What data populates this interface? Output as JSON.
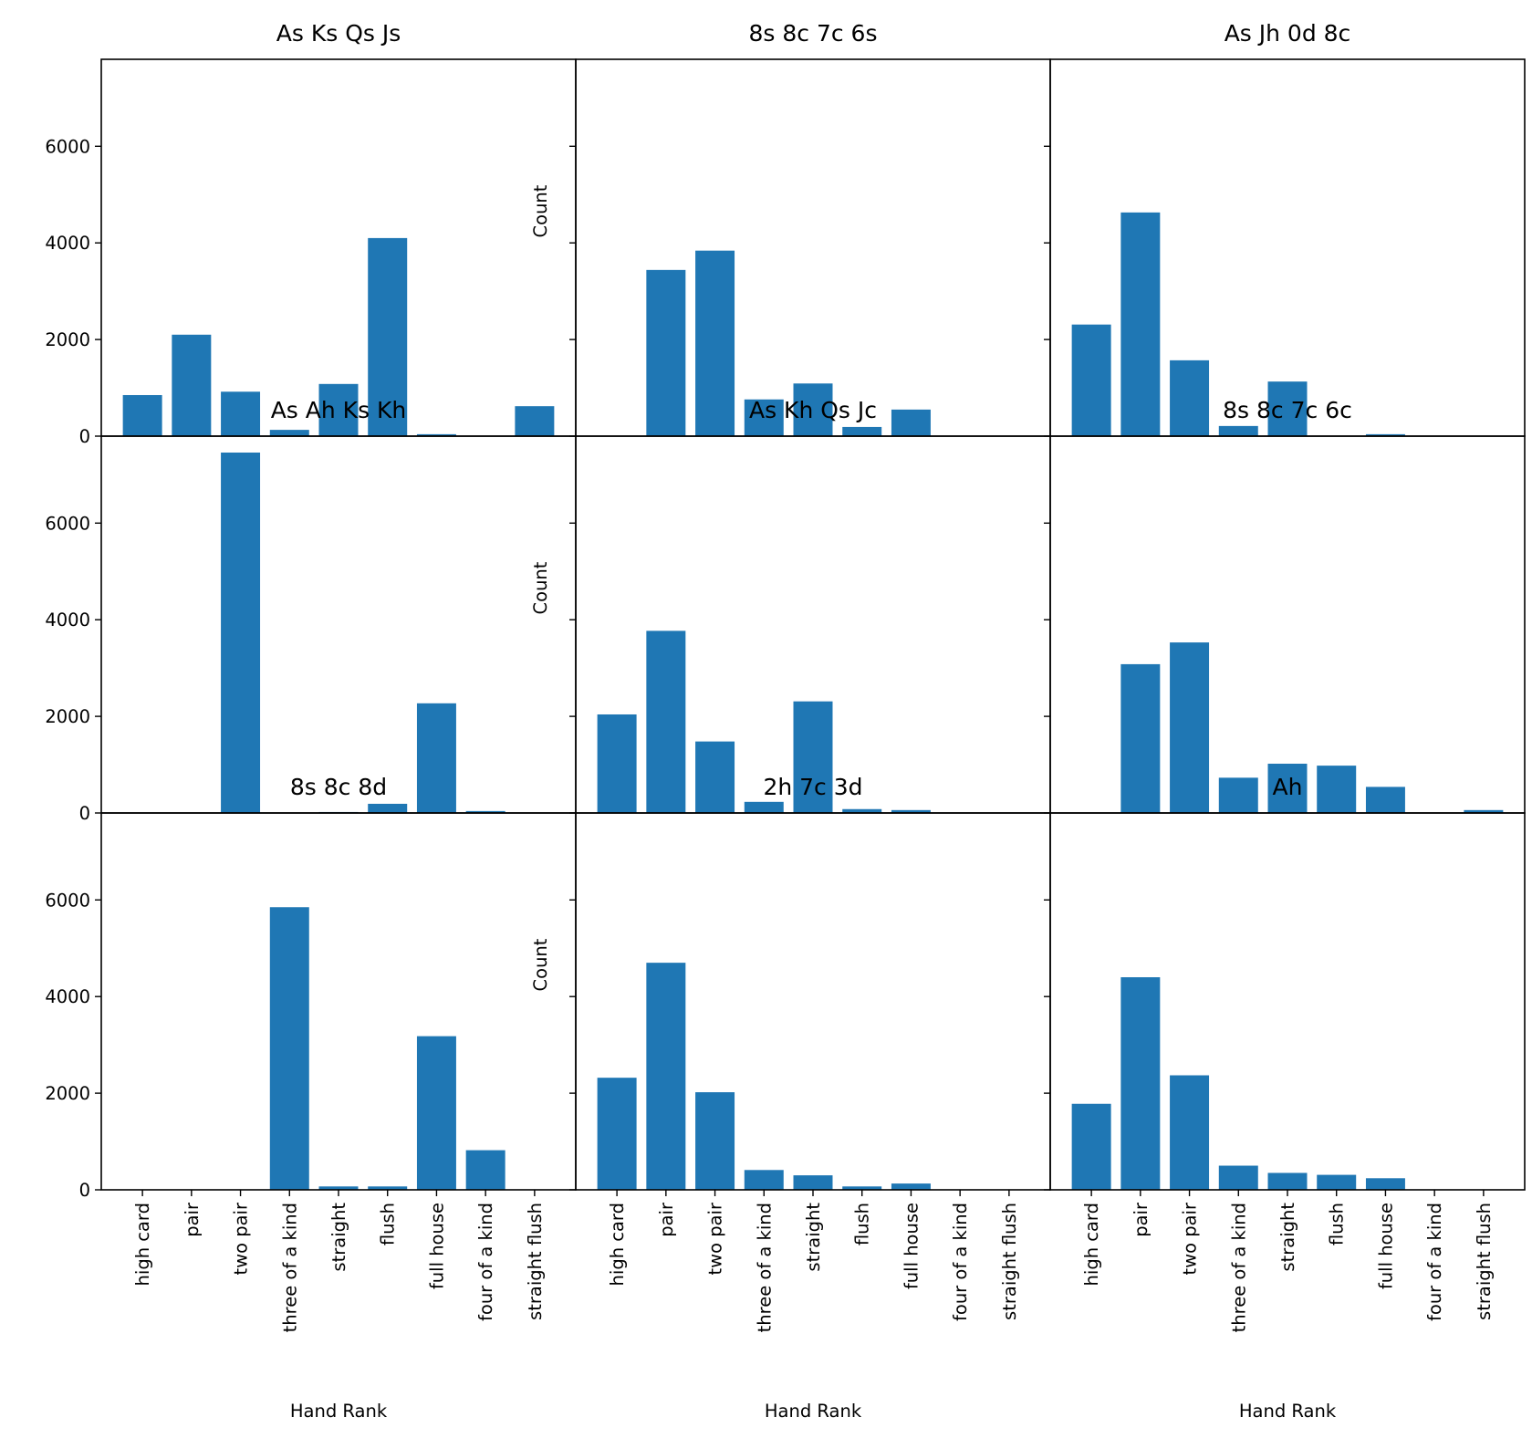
{
  "colors": {
    "bar": "#1f77b4",
    "axis": "#000000",
    "background": "#ffffff"
  },
  "chart_data": {
    "type": "bar",
    "layout": "3x3 grid, shared axes",
    "categories": [
      "high card",
      "pair",
      "two pair",
      "three of a kind",
      "straight",
      "flush",
      "full house",
      "four of a kind",
      "straight flush"
    ],
    "xlabel": "Hand Rank",
    "ylabel": "Count",
    "ylim": [
      0,
      7800
    ],
    "yticks": [
      "0",
      "2000",
      "4000",
      "6000"
    ],
    "grid": false,
    "panels": [
      {
        "title": "As Ks Qs Js",
        "values": [
          850,
          2100,
          920,
          130,
          1080,
          4100,
          40,
          0,
          620
        ]
      },
      {
        "title": "8s 8c 7c 6s",
        "values": [
          0,
          3440,
          3840,
          760,
          1090,
          190,
          550,
          0,
          0
        ]
      },
      {
        "title": "As Jh 0d 8c",
        "values": [
          2310,
          4630,
          1570,
          210,
          1130,
          0,
          40,
          0,
          0
        ]
      },
      {
        "title": "As Ah Ks Kh",
        "values": [
          0,
          0,
          7460,
          0,
          20,
          190,
          2270,
          40,
          0
        ]
      },
      {
        "title": "As Kh Qs Jc",
        "values": [
          2040,
          3770,
          1480,
          230,
          2310,
          80,
          60,
          0,
          0
        ]
      },
      {
        "title": "8s 8c 7c 6c",
        "values": [
          0,
          3080,
          3530,
          730,
          1020,
          980,
          540,
          0,
          60
        ]
      },
      {
        "title": "8s 8c 8d",
        "values": [
          0,
          0,
          0,
          5850,
          70,
          70,
          3180,
          820,
          0
        ]
      },
      {
        "title": "2h 7c 3d",
        "values": [
          2320,
          4700,
          2020,
          410,
          300,
          70,
          130,
          0,
          0
        ]
      },
      {
        "title": "Ah",
        "values": [
          1780,
          4400,
          2370,
          500,
          350,
          310,
          240,
          0,
          0
        ]
      }
    ]
  }
}
